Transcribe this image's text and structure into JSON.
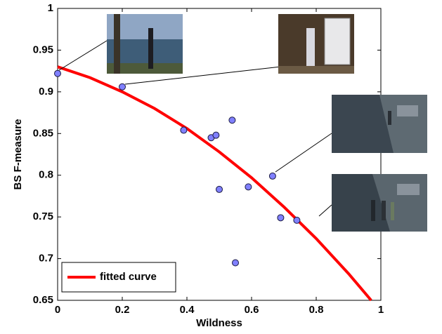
{
  "chart_data": {
    "type": "scatter",
    "xlabel": "Wildness",
    "ylabel": "BS F-measure",
    "xlim": [
      0,
      1
    ],
    "ylim": [
      0.65,
      1
    ],
    "xticks": [
      0,
      0.2,
      0.4,
      0.6,
      0.8,
      1
    ],
    "yticks": [
      0.65,
      0.7,
      0.75,
      0.8,
      0.85,
      0.9,
      0.95,
      1
    ],
    "legend": "lower left",
    "series": [
      {
        "type": "scatter",
        "color": "#8080ff",
        "x": [
          0,
          0.2,
          0.39,
          0.475,
          0.49,
          0.54,
          0.5,
          0.59,
          0.665,
          0.69,
          0.74,
          0.55
        ],
        "values": [
          0.922,
          0.906,
          0.854,
          0.845,
          0.848,
          0.866,
          0.783,
          0.786,
          0.799,
          0.749,
          0.746,
          0.695
        ]
      },
      {
        "type": "line",
        "name": "fitted curve",
        "color": "#ff0000",
        "x": [
          0,
          0.1,
          0.2,
          0.3,
          0.4,
          0.5,
          0.6,
          0.7,
          0.8,
          0.9,
          0.97
        ],
        "values": [
          0.93,
          0.917,
          0.9,
          0.88,
          0.856,
          0.828,
          0.797,
          0.762,
          0.724,
          0.682,
          0.65
        ]
      }
    ]
  }
}
